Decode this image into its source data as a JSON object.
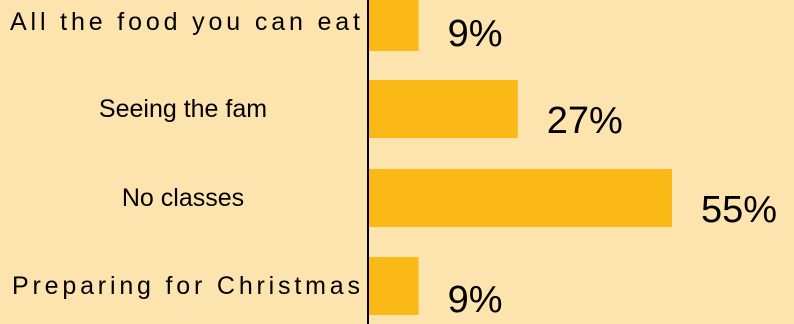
{
  "chart_data": {
    "type": "bar",
    "orientation": "horizontal",
    "categories": [
      "All the food you can eat",
      "Seeing the fam",
      "No classes",
      "Preparing for Christmas"
    ],
    "values": [
      9,
      27,
      55,
      9
    ],
    "value_labels": [
      "9%",
      "27%",
      "55%",
      "9%"
    ],
    "title": "",
    "xlabel": "",
    "ylabel": "",
    "xlim": [
      0,
      60
    ],
    "grid": false,
    "legend": "none",
    "colors": {
      "background": "#fde3ad",
      "bar": "#fbb917",
      "axis": "#000000",
      "text": "#000000"
    }
  }
}
